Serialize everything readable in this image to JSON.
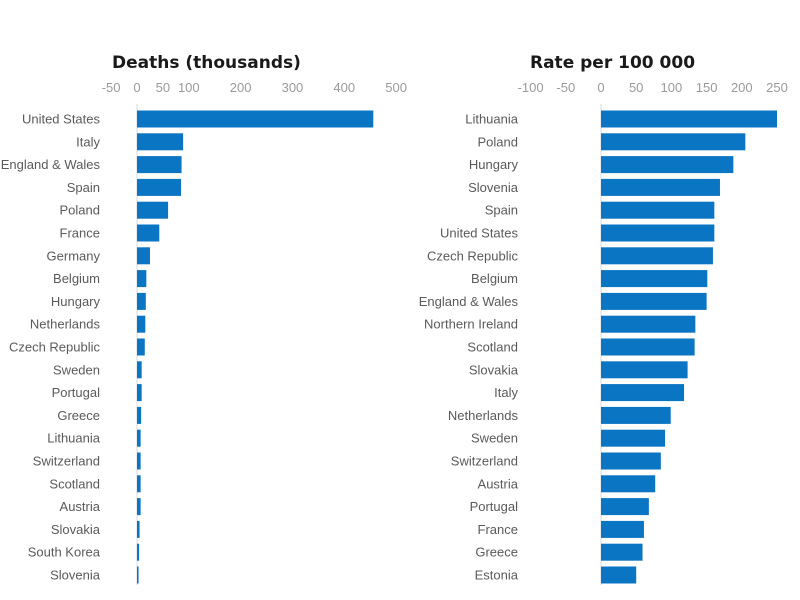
{
  "chart_data": [
    {
      "type": "bar",
      "orientation": "horizontal",
      "title": "Deaths (thousands)",
      "xlim": [
        -50,
        500
      ],
      "ticks": [
        -50,
        0,
        50,
        100,
        200,
        300,
        400,
        500
      ],
      "color": "#0a75c2",
      "categories": [
        "United States",
        "Italy",
        "England & Wales",
        "Spain",
        "Poland",
        "France",
        "Germany",
        "Belgium",
        "Hungary",
        "Netherlands",
        "Czech Republic",
        "Sweden",
        "Portugal",
        "Greece",
        "Lithuania",
        "Switzerland",
        "Scotland",
        "Austria",
        "Slovakia",
        "South Korea",
        "Slovenia"
      ],
      "values": [
        456,
        89,
        86,
        85,
        60,
        43,
        25,
        18,
        17,
        16,
        15,
        9,
        9,
        8,
        7,
        7,
        7,
        7,
        5,
        4,
        3
      ]
    },
    {
      "type": "bar",
      "orientation": "horizontal",
      "title": "Rate per 100 000",
      "xlim": [
        -100,
        250
      ],
      "ticks": [
        -100,
        -50,
        0,
        50,
        100,
        150,
        200,
        250
      ],
      "color": "#0a75c2",
      "categories": [
        "Lithuania",
        "Poland",
        "Hungary",
        "Slovenia",
        "Spain",
        "United States",
        "Czech Republic",
        "Belgium",
        "England & Wales",
        "Northern Ireland",
        "Scotland",
        "Slovakia",
        "Italy",
        "Netherlands",
        "Sweden",
        "Switzerland",
        "Austria",
        "Portugal",
        "France",
        "Greece",
        "Estonia"
      ],
      "values": [
        250,
        205,
        188,
        169,
        161,
        161,
        159,
        151,
        150,
        134,
        133,
        123,
        118,
        99,
        91,
        85,
        77,
        68,
        61,
        59,
        50
      ]
    }
  ]
}
